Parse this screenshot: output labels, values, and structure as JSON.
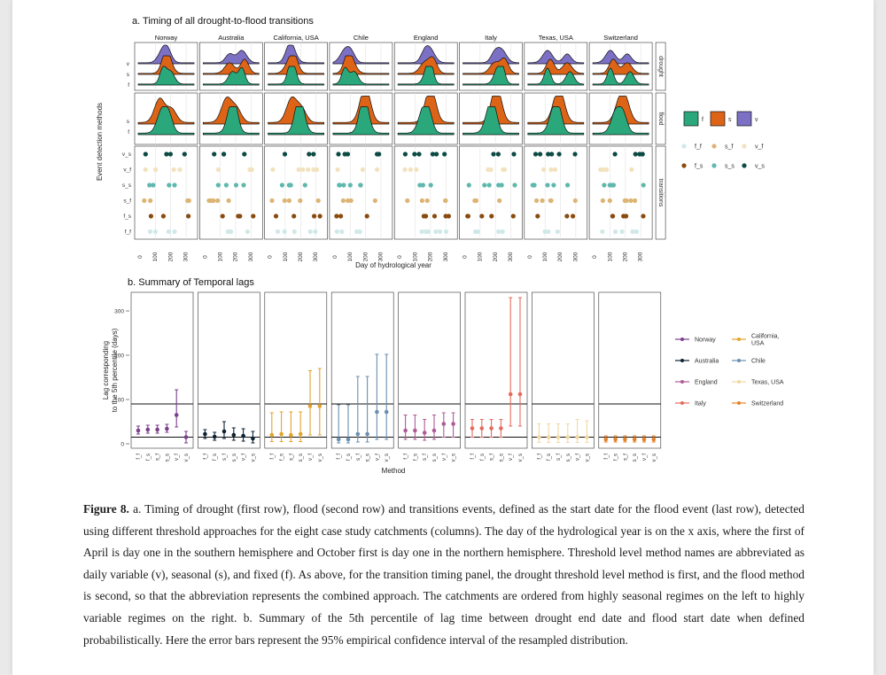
{
  "figure": {
    "panel_a_title": "a. Timing of all drought-to-flood transitions",
    "panel_b_title": "b. Summary of Temporal lags",
    "catchments": [
      "Norway",
      "Australia",
      "California, USA",
      "Chile",
      "England",
      "Italy",
      "Texas, USA",
      "Switzerland"
    ],
    "catchment_colors": [
      "#7b3f8c",
      "#0c2233",
      "#e3a32c",
      "#6a8fb0",
      "#b05a98",
      "#e56b5e",
      "#f0d8a0",
      "#e8822a"
    ],
    "row_strip_labels": [
      "drought",
      "flood",
      "transitions"
    ],
    "y_axis_label_a": "Event detection methods",
    "x_axis_label_a": "Day of hydrological year",
    "x_tick_labels_a": [
      "0",
      "100",
      "200",
      "300"
    ],
    "drought_row_labels": [
      "v",
      "s",
      "f"
    ],
    "flood_row_labels": [
      "s",
      "f"
    ],
    "transition_row_labels": [
      "v_s",
      "v_f",
      "s_s",
      "s_f",
      "f_s",
      "f_f"
    ],
    "fill_legend": [
      {
        "key": "f",
        "color": "#2aa87c"
      },
      {
        "key": "s",
        "color": "#dd6416"
      },
      {
        "key": "v",
        "color": "#7b70c4"
      }
    ],
    "method_legend": [
      {
        "key": "f_f",
        "color": "#cfe9e8"
      },
      {
        "key": "s_f",
        "color": "#dcb574"
      },
      {
        "key": "v_f",
        "color": "#f2e2bd"
      },
      {
        "key": "f_s",
        "color": "#8a4a0e"
      },
      {
        "key": "s_s",
        "color": "#5fb8ae"
      },
      {
        "key": "v_s",
        "color": "#0c4a44"
      }
    ],
    "y_axis_label_b_line1": "Lag corresponding",
    "y_axis_label_b_line2": "to the 5th percentile (days)",
    "y_tick_labels_b": [
      "0",
      "100",
      "200",
      "300"
    ],
    "x_axis_label_b": "Method",
    "method_order_b": [
      "f_f",
      "f_s",
      "s_f",
      "s_s",
      "v_f",
      "v_s"
    ],
    "lag_legend": [
      {
        "label": "Norway"
      },
      {
        "label": "California, USA"
      },
      {
        "label": "Australia"
      },
      {
        "label": "Chile"
      },
      {
        "label": "England"
      },
      {
        "label": "Texas, USA"
      },
      {
        "label": "Italy"
      },
      {
        "label": "Switzerland"
      }
    ]
  },
  "caption": {
    "label": "Figure 8.",
    "text": " a. Timing of drought (first row), flood (second row) and transitions events, defined as the start date for the flood event (last row), detected using different threshold approaches for the eight case study catchments (columns). The day of the hydrological year is on the x axis, where the first of April is day one in the southern hemisphere and October first is day one in the northern hemisphere. Threshold level method names are abbreviated as daily variable (v), seasonal (s), and fixed (f). As above, for the transition timing panel, the drought threshold level method is first, and the flood method is second, so that the abbreviation represents the combined approach. The catchments are ordered from highly seasonal regimes on the left to highly variable regimes on the right. b. Summary of the 5th percentile of lag time between drought end date and flood start date when defined probabilistically. Here the error bars represent the 95% empirical confidence interval of the resampled distribution."
  },
  "chart_data": {
    "type": "scatter",
    "title": "b. Summary of Temporal lags",
    "xlabel": "Method",
    "ylabel": "Lag corresponding to the 5th percentile (days)",
    "ylim": [
      -10,
      330
    ],
    "reference_lines": [
      15,
      90
    ],
    "categories": [
      "f_f",
      "f_s",
      "s_f",
      "s_s",
      "v_f",
      "v_s"
    ],
    "series": [
      {
        "name": "Norway",
        "values": [
          30,
          32,
          32,
          34,
          65,
          15
        ],
        "lower": [
          22,
          24,
          24,
          26,
          38,
          2
        ],
        "upper": [
          40,
          42,
          42,
          44,
          122,
          28
        ]
      },
      {
        "name": "Australia",
        "values": [
          22,
          16,
          28,
          20,
          18,
          12
        ],
        "lower": [
          12,
          8,
          12,
          8,
          6,
          2
        ],
        "upper": [
          32,
          26,
          50,
          36,
          34,
          28
        ]
      },
      {
        "name": "California, USA",
        "values": [
          20,
          22,
          20,
          22,
          85,
          85
        ],
        "lower": [
          5,
          5,
          5,
          5,
          20,
          20
        ],
        "upper": [
          70,
          72,
          72,
          72,
          165,
          170
        ]
      },
      {
        "name": "Chile",
        "values": [
          10,
          10,
          22,
          22,
          72,
          72
        ],
        "lower": [
          2,
          2,
          4,
          4,
          10,
          10
        ],
        "upper": [
          88,
          88,
          152,
          152,
          202,
          202
        ]
      },
      {
        "name": "England",
        "values": [
          30,
          30,
          25,
          30,
          45,
          45
        ],
        "lower": [
          10,
          10,
          8,
          10,
          15,
          15
        ],
        "upper": [
          65,
          65,
          55,
          65,
          70,
          70
        ]
      },
      {
        "name": "Italy",
        "values": [
          35,
          35,
          35,
          35,
          112,
          112
        ],
        "lower": [
          15,
          15,
          15,
          15,
          40,
          40
        ],
        "upper": [
          55,
          55,
          55,
          55,
          330,
          330
        ]
      },
      {
        "name": "Texas, USA",
        "values": [
          15,
          15,
          15,
          15,
          15,
          15
        ],
        "lower": [
          3,
          3,
          3,
          3,
          3,
          3
        ],
        "upper": [
          45,
          45,
          45,
          45,
          55,
          52
        ]
      },
      {
        "name": "Switzerland",
        "values": [
          10,
          10,
          10,
          10,
          10,
          10
        ],
        "lower": [
          4,
          4,
          4,
          4,
          4,
          4
        ],
        "upper": [
          18,
          18,
          18,
          18,
          18,
          18
        ]
      }
    ]
  }
}
